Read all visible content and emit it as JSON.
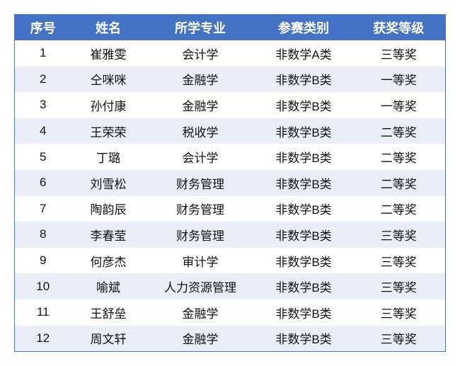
{
  "header": [
    "序号",
    "姓名",
    "所学专业",
    "参赛类别",
    "获奖等级"
  ],
  "rows": [
    [
      "1",
      "崔雅雯",
      "会计学",
      "非数学A类",
      "三等奖"
    ],
    [
      "2",
      "仝咪咪",
      "金融学",
      "非数学B类",
      "一等奖"
    ],
    [
      "3",
      "孙付康",
      "金融学",
      "非数学B类",
      "一等奖"
    ],
    [
      "4",
      "王荣荣",
      "税收学",
      "非数学B类",
      "二等奖"
    ],
    [
      "5",
      "丁璐",
      "会计学",
      "非数学B类",
      "二等奖"
    ],
    [
      "6",
      "刘雪松",
      "财务管理",
      "非数学B类",
      "二等奖"
    ],
    [
      "7",
      "陶韵辰",
      "财务管理",
      "非数学B类",
      "二等奖"
    ],
    [
      "8",
      "李春莹",
      "财务管理",
      "非数学B类",
      "三等奖"
    ],
    [
      "9",
      "何彦杰",
      "审计学",
      "非数学B类",
      "三等奖"
    ],
    [
      "10",
      "喻斌",
      "人力资源管理",
      "非数学B类",
      "三等奖"
    ],
    [
      "11",
      "王舒垒",
      "金融学",
      "非数学B类",
      "三等奖"
    ],
    [
      "12",
      "周文轩",
      "金融学",
      "非数学B类",
      "三等奖"
    ]
  ],
  "colors": {
    "header_bg": "#4472c4",
    "stripe_bg": "#e9eef8"
  }
}
